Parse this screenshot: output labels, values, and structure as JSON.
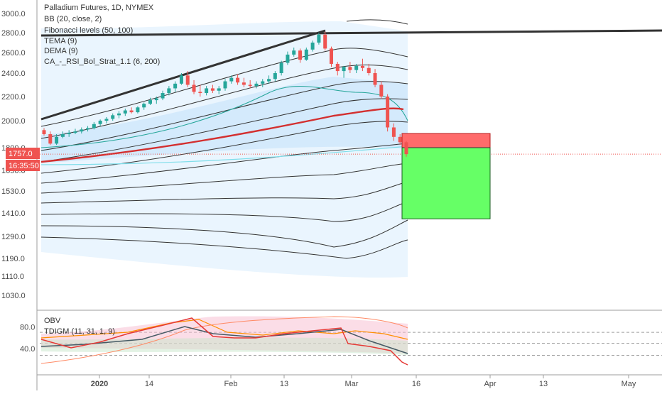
{
  "legend": {
    "title": "Palladium Futures, 1D, NYMEX",
    "studies": [
      "BB (20, close, 2)",
      "Fibonacci levels (50, 100)",
      "TEMA (9)",
      "DEMA (9)",
      "CA_-_RSI_Bol_Strat_1.1 (6, 200)"
    ]
  },
  "sub_legend": {
    "studies": [
      "OBV",
      "TDIGM (11, 31, 1, 9)"
    ]
  },
  "price_tag": {
    "value": "1757.0",
    "countdown": "16:35:50",
    "color": "#ef5350"
  },
  "colors": {
    "up": "#26a69a",
    "down": "#ef5350",
    "ema": "#d32f2f",
    "bb": "#333333",
    "bb_fill": "#e3f2fd",
    "trend": "#333333",
    "tp": "#66ff66",
    "sl": "#ff6b6b"
  },
  "chart_data": [
    {
      "type": "candlestick",
      "yaxis_ticks": [
        "3000.0",
        "2800.0",
        "2600.0",
        "2400.0",
        "2200.0",
        "2000.0",
        "1800.0",
        "1650.0",
        "1530.0",
        "1410.0",
        "1290.0",
        "1190.0",
        "1110.0",
        "1030.0"
      ],
      "xaxis_ticks": [
        "2020",
        "14",
        "Feb",
        "13",
        "Mar",
        "16",
        "Apr",
        "13",
        "May"
      ],
      "position_box": {
        "entry": 1800,
        "stop": 1905,
        "target": 1380
      },
      "current_price": 1757.0,
      "ohlc": [
        [
          1930,
          1945,
          1890,
          1900
        ],
        [
          1900,
          1920,
          1820,
          1830
        ],
        [
          1830,
          1900,
          1820,
          1880
        ],
        [
          1880,
          1920,
          1870,
          1900
        ],
        [
          1900,
          1930,
          1880,
          1910
        ],
        [
          1910,
          1940,
          1900,
          1920
        ],
        [
          1920,
          1950,
          1905,
          1935
        ],
        [
          1935,
          1960,
          1920,
          1945
        ],
        [
          1945,
          1990,
          1935,
          1975
        ],
        [
          1975,
          2010,
          1960,
          2000
        ],
        [
          2000,
          2030,
          1980,
          2015
        ],
        [
          2015,
          2060,
          2000,
          2045
        ],
        [
          2045,
          2080,
          2020,
          2060
        ],
        [
          2060,
          2100,
          2040,
          2085
        ],
        [
          2085,
          2110,
          2060,
          2070
        ],
        [
          2070,
          2120,
          2060,
          2110
        ],
        [
          2110,
          2150,
          2090,
          2140
        ],
        [
          2140,
          2190,
          2130,
          2170
        ],
        [
          2170,
          2200,
          2140,
          2185
        ],
        [
          2185,
          2250,
          2170,
          2230
        ],
        [
          2230,
          2290,
          2210,
          2270
        ],
        [
          2270,
          2330,
          2240,
          2310
        ],
        [
          2310,
          2400,
          2300,
          2380
        ],
        [
          2380,
          2420,
          2280,
          2300
        ],
        [
          2300,
          2340,
          2220,
          2240
        ],
        [
          2240,
          2300,
          2200,
          2230
        ],
        [
          2230,
          2290,
          2210,
          2270
        ],
        [
          2270,
          2300,
          2230,
          2250
        ],
        [
          2250,
          2290,
          2220,
          2270
        ],
        [
          2270,
          2350,
          2250,
          2330
        ],
        [
          2330,
          2380,
          2310,
          2360
        ],
        [
          2360,
          2390,
          2300,
          2320
        ],
        [
          2320,
          2360,
          2280,
          2300
        ],
        [
          2300,
          2340,
          2270,
          2290
        ],
        [
          2290,
          2330,
          2270,
          2310
        ],
        [
          2310,
          2350,
          2280,
          2330
        ],
        [
          2330,
          2380,
          2310,
          2350
        ],
        [
          2350,
          2420,
          2330,
          2400
        ],
        [
          2400,
          2520,
          2380,
          2500
        ],
        [
          2500,
          2610,
          2480,
          2580
        ],
        [
          2580,
          2650,
          2560,
          2620
        ],
        [
          2620,
          2640,
          2500,
          2530
        ],
        [
          2530,
          2650,
          2520,
          2630
        ],
        [
          2630,
          2720,
          2610,
          2700
        ],
        [
          2700,
          2800,
          2680,
          2780
        ],
        [
          2780,
          2810,
          2620,
          2640
        ],
        [
          2640,
          2660,
          2460,
          2490
        ],
        [
          2490,
          2510,
          2380,
          2420
        ],
        [
          2420,
          2470,
          2360,
          2460
        ],
        [
          2460,
          2510,
          2400,
          2430
        ],
        [
          2430,
          2490,
          2400,
          2470
        ],
        [
          2470,
          2540,
          2420,
          2450
        ],
        [
          2450,
          2490,
          2380,
          2400
        ],
        [
          2400,
          2440,
          2280,
          2300
        ],
        [
          2300,
          2330,
          2180,
          2200
        ],
        [
          2200,
          2220,
          1920,
          1950
        ],
        [
          1950,
          1980,
          1850,
          1880
        ],
        [
          1880,
          1900,
          1820,
          1840
        ],
        [
          1840,
          1850,
          1740,
          1757
        ]
      ]
    },
    {
      "type": "line",
      "ylim": [
        0,
        100
      ],
      "yaxis_ticks": [
        "80.0",
        "40.0"
      ],
      "levels": [
        70,
        50,
        28
      ]
    }
  ]
}
